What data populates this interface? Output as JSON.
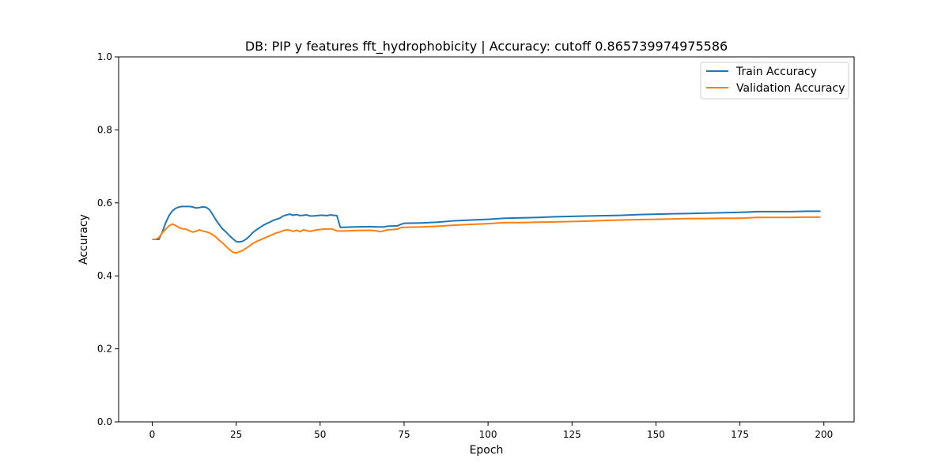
{
  "chart_data": {
    "type": "line",
    "title": "DB: PIP y features fft_hydrophobicity | Accuracy: cutoff 0.865739974975586",
    "xlabel": "Epoch",
    "ylabel": "Accuracy",
    "xlim": [
      -10,
      209
    ],
    "ylim": [
      0.0,
      1.0
    ],
    "xticks": [
      0,
      25,
      50,
      75,
      100,
      125,
      150,
      175,
      200
    ],
    "yticks": [
      0.0,
      0.2,
      0.4,
      0.6,
      0.8,
      1.0
    ],
    "xtick_labels": [
      "0",
      "25",
      "50",
      "75",
      "100",
      "125",
      "150",
      "175",
      "200"
    ],
    "ytick_labels": [
      "0.0",
      "0.2",
      "0.4",
      "0.6",
      "0.8",
      "1.0"
    ],
    "grid": false,
    "legend_position": "top-right",
    "series": [
      {
        "name": "Train Accuracy",
        "color": "#1f77b4",
        "points": [
          [
            0,
            0.5
          ],
          [
            1,
            0.5
          ],
          [
            2,
            0.5
          ],
          [
            3,
            0.52
          ],
          [
            4,
            0.545
          ],
          [
            5,
            0.565
          ],
          [
            6,
            0.578
          ],
          [
            7,
            0.585
          ],
          [
            8,
            0.589
          ],
          [
            9,
            0.59
          ],
          [
            10,
            0.59
          ],
          [
            11,
            0.59
          ],
          [
            12,
            0.589
          ],
          [
            13,
            0.586
          ],
          [
            14,
            0.587
          ],
          [
            15,
            0.589
          ],
          [
            16,
            0.588
          ],
          [
            17,
            0.582
          ],
          [
            18,
            0.568
          ],
          [
            19,
            0.553
          ],
          [
            20,
            0.54
          ],
          [
            21,
            0.528
          ],
          [
            22,
            0.52
          ],
          [
            23,
            0.51
          ],
          [
            24,
            0.502
          ],
          [
            25,
            0.494
          ],
          [
            26,
            0.493
          ],
          [
            27,
            0.495
          ],
          [
            28,
            0.501
          ],
          [
            29,
            0.509
          ],
          [
            30,
            0.519
          ],
          [
            31,
            0.526
          ],
          [
            32,
            0.532
          ],
          [
            33,
            0.538
          ],
          [
            34,
            0.543
          ],
          [
            35,
            0.547
          ],
          [
            36,
            0.552
          ],
          [
            37,
            0.555
          ],
          [
            38,
            0.558
          ],
          [
            39,
            0.564
          ],
          [
            40,
            0.567
          ],
          [
            41,
            0.569
          ],
          [
            42,
            0.566
          ],
          [
            43,
            0.568
          ],
          [
            44,
            0.565
          ],
          [
            45,
            0.566
          ],
          [
            46,
            0.567
          ],
          [
            47,
            0.564
          ],
          [
            48,
            0.564
          ],
          [
            49,
            0.565
          ],
          [
            50,
            0.566
          ],
          [
            51,
            0.566
          ],
          [
            52,
            0.565
          ],
          [
            53,
            0.567
          ],
          [
            54,
            0.566
          ],
          [
            55,
            0.565
          ],
          [
            56,
            0.533
          ],
          [
            57,
            0.533
          ],
          [
            60,
            0.534
          ],
          [
            65,
            0.535
          ],
          [
            67,
            0.534
          ],
          [
            69,
            0.534
          ],
          [
            70,
            0.536
          ],
          [
            73,
            0.537
          ],
          [
            74,
            0.541
          ],
          [
            75,
            0.544
          ],
          [
            80,
            0.545
          ],
          [
            85,
            0.547
          ],
          [
            90,
            0.551
          ],
          [
            95,
            0.553
          ],
          [
            100,
            0.555
          ],
          [
            105,
            0.558
          ],
          [
            110,
            0.559
          ],
          [
            115,
            0.56
          ],
          [
            120,
            0.562
          ],
          [
            125,
            0.563
          ],
          [
            130,
            0.564
          ],
          [
            135,
            0.565
          ],
          [
            140,
            0.566
          ],
          [
            145,
            0.568
          ],
          [
            150,
            0.569
          ],
          [
            155,
            0.57
          ],
          [
            160,
            0.571
          ],
          [
            165,
            0.572
          ],
          [
            170,
            0.573
          ],
          [
            175,
            0.574
          ],
          [
            178,
            0.575
          ],
          [
            180,
            0.576
          ],
          [
            185,
            0.576
          ],
          [
            190,
            0.576
          ],
          [
            195,
            0.577
          ],
          [
            199,
            0.577
          ]
        ]
      },
      {
        "name": "Validation Accuracy",
        "color": "#ff7f0e",
        "points": [
          [
            0,
            0.5
          ],
          [
            1,
            0.5
          ],
          [
            2,
            0.505
          ],
          [
            3,
            0.518
          ],
          [
            4,
            0.528
          ],
          [
            5,
            0.537
          ],
          [
            6,
            0.542
          ],
          [
            7,
            0.538
          ],
          [
            8,
            0.532
          ],
          [
            9,
            0.529
          ],
          [
            10,
            0.528
          ],
          [
            11,
            0.524
          ],
          [
            12,
            0.52
          ],
          [
            13,
            0.522
          ],
          [
            14,
            0.526
          ],
          [
            15,
            0.523
          ],
          [
            16,
            0.521
          ],
          [
            17,
            0.518
          ],
          [
            18,
            0.513
          ],
          [
            19,
            0.506
          ],
          [
            20,
            0.497
          ],
          [
            21,
            0.49
          ],
          [
            22,
            0.481
          ],
          [
            23,
            0.472
          ],
          [
            24,
            0.465
          ],
          [
            25,
            0.463
          ],
          [
            26,
            0.466
          ],
          [
            27,
            0.47
          ],
          [
            28,
            0.476
          ],
          [
            29,
            0.482
          ],
          [
            30,
            0.489
          ],
          [
            31,
            0.494
          ],
          [
            32,
            0.498
          ],
          [
            33,
            0.502
          ],
          [
            34,
            0.506
          ],
          [
            35,
            0.51
          ],
          [
            36,
            0.514
          ],
          [
            37,
            0.518
          ],
          [
            38,
            0.52
          ],
          [
            39,
            0.524
          ],
          [
            40,
            0.526
          ],
          [
            41,
            0.525
          ],
          [
            42,
            0.522
          ],
          [
            43,
            0.525
          ],
          [
            44,
            0.521
          ],
          [
            45,
            0.526
          ],
          [
            46,
            0.524
          ],
          [
            47,
            0.522
          ],
          [
            48,
            0.524
          ],
          [
            49,
            0.526
          ],
          [
            50,
            0.527
          ],
          [
            51,
            0.528
          ],
          [
            52,
            0.528
          ],
          [
            53,
            0.529
          ],
          [
            54,
            0.527
          ],
          [
            55,
            0.523
          ],
          [
            56,
            0.523
          ],
          [
            57,
            0.523
          ],
          [
            60,
            0.524
          ],
          [
            65,
            0.525
          ],
          [
            67,
            0.523
          ],
          [
            68,
            0.521
          ],
          [
            70,
            0.526
          ],
          [
            73,
            0.528
          ],
          [
            74,
            0.532
          ],
          [
            75,
            0.533
          ],
          [
            80,
            0.534
          ],
          [
            85,
            0.536
          ],
          [
            90,
            0.539
          ],
          [
            95,
            0.541
          ],
          [
            100,
            0.543
          ],
          [
            105,
            0.546
          ],
          [
            110,
            0.546
          ],
          [
            115,
            0.547
          ],
          [
            120,
            0.548
          ],
          [
            125,
            0.549
          ],
          [
            130,
            0.55
          ],
          [
            135,
            0.552
          ],
          [
            140,
            0.553
          ],
          [
            145,
            0.554
          ],
          [
            150,
            0.555
          ],
          [
            155,
            0.556
          ],
          [
            160,
            0.557
          ],
          [
            165,
            0.557
          ],
          [
            170,
            0.558
          ],
          [
            175,
            0.558
          ],
          [
            180,
            0.56
          ],
          [
            185,
            0.56
          ],
          [
            190,
            0.56
          ],
          [
            195,
            0.561
          ],
          [
            199,
            0.561
          ]
        ]
      }
    ]
  }
}
